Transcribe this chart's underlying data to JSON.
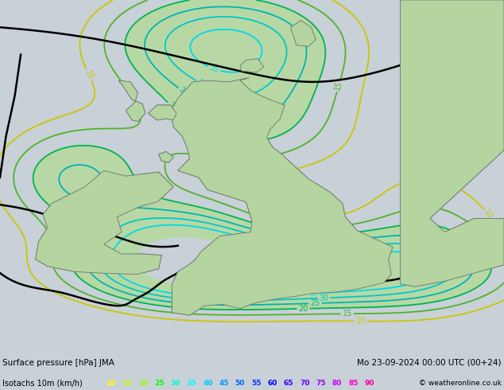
{
  "title_left": "Surface pressure [hPa] JMA",
  "title_right": "Mo 23-09-2024 00:00 UTC (00+24)",
  "subtitle_left": "Isotachs 10m (km/h)",
  "copyright": "© weatheronline.co.uk",
  "legend_values": [
    10,
    15,
    20,
    25,
    30,
    35,
    40,
    45,
    50,
    55,
    60,
    65,
    70,
    75,
    80,
    85,
    90
  ],
  "legend_colors": [
    "#ffff00",
    "#c8ff00",
    "#96ff00",
    "#00ff00",
    "#00ffc8",
    "#00ffff",
    "#00c8ff",
    "#0096ff",
    "#0064ff",
    "#0032ff",
    "#0000ff",
    "#3200ff",
    "#6400ff",
    "#9600ff",
    "#c800ff",
    "#ff00c8",
    "#ff0096"
  ],
  "bg_color": "#c8d0d8",
  "land_color": "#b4d4a0",
  "sea_color": "#c8d0d8",
  "figsize": [
    6.34,
    4.9
  ],
  "dpi": 100,
  "bar_color": "#b0b8c0",
  "xlim": [
    -11.5,
    5.5
  ],
  "ylim": [
    48.5,
    61.5
  ]
}
